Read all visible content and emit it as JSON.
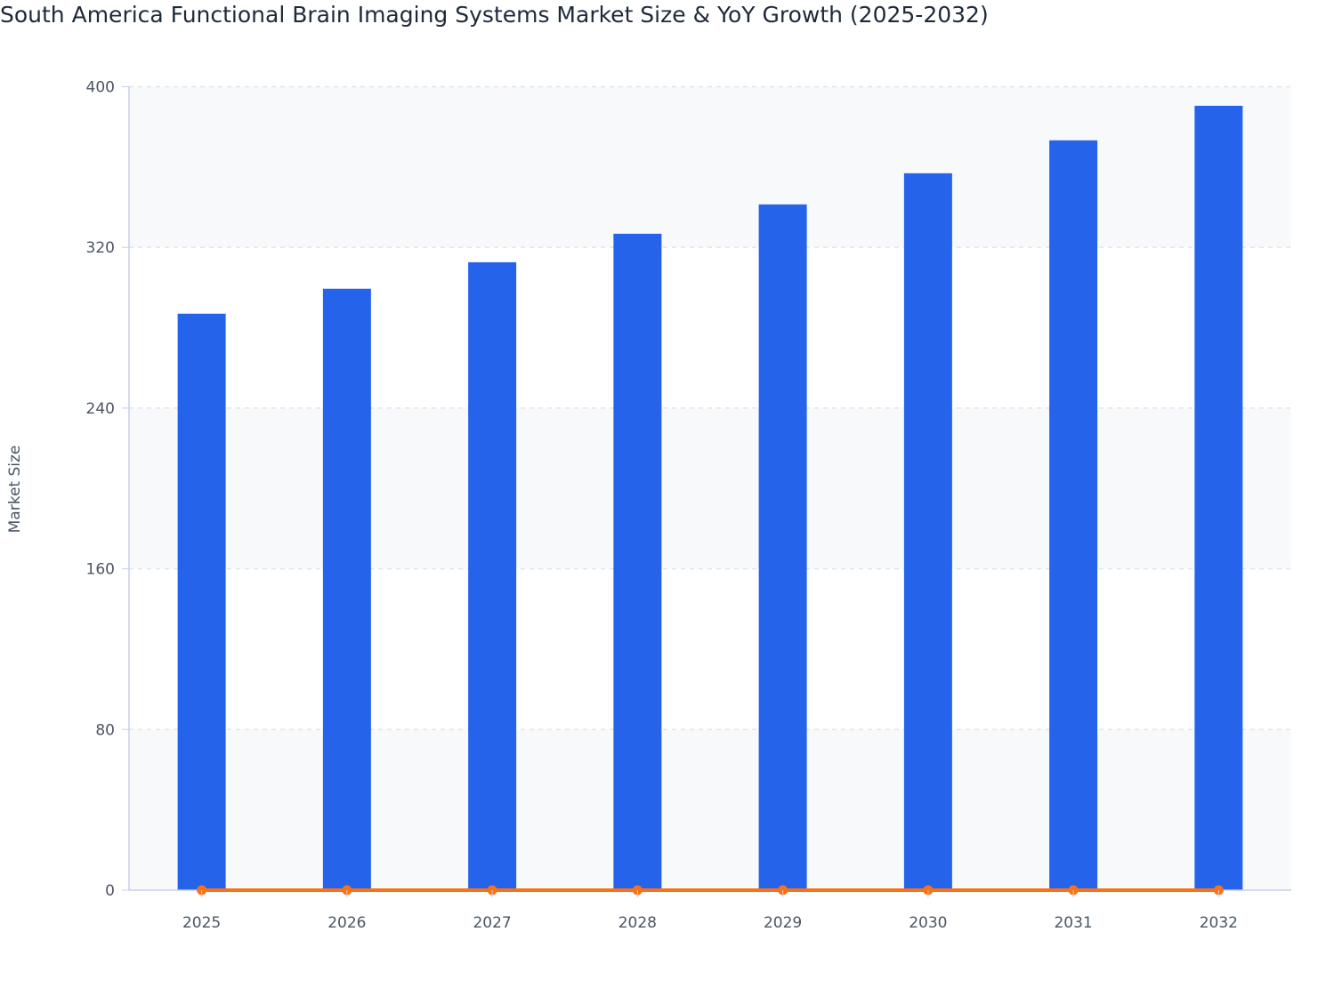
{
  "chart_data": {
    "type": "bar",
    "title": "South America Functional Brain Imaging Systems Market Size & YoY Growth (2025-2032)",
    "xlabel": "",
    "ylabel": "Market Size",
    "ylim": [
      0,
      400
    ],
    "yticks": [
      0,
      80,
      160,
      240,
      320,
      400
    ],
    "categories": [
      "2025",
      "2026",
      "2027",
      "2028",
      "2029",
      "2030",
      "2031",
      "2032"
    ],
    "series": [
      {
        "type": "bar",
        "values": [
          287,
          299.4,
          312.6,
          326.8,
          341.4,
          356.9,
          373.3,
          390.5
        ],
        "color": "#2563eb"
      },
      {
        "type": "line",
        "values": [
          0,
          0,
          0,
          0,
          0,
          0,
          0,
          0
        ],
        "color": "#f97316"
      }
    ],
    "grid": true,
    "legend": "none"
  }
}
